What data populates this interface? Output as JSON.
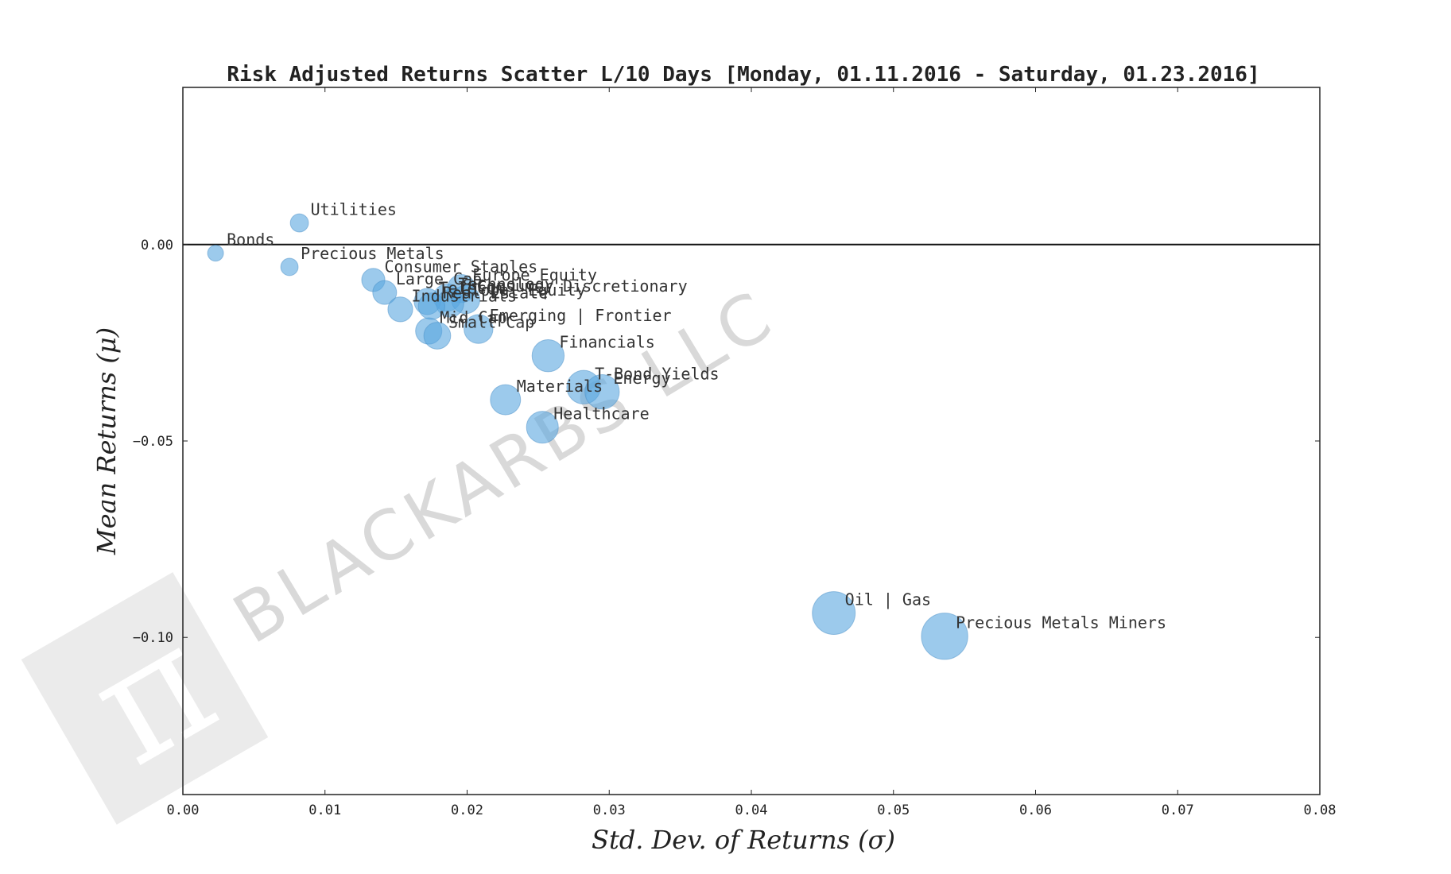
{
  "chart_data": {
    "type": "scatter",
    "title": "Risk Adjusted Returns Scatter L/10 Days [Monday, 01.11.2016 - Saturday, 01.23.2016]",
    "xlabel": "Std.  Dev.  of  Returns     (σ)",
    "ylabel": "Mean  Returns     (μ)",
    "xlim": [
      0.0,
      0.08
    ],
    "ylim": [
      -0.14,
      0.04
    ],
    "xticks": [
      0.0,
      0.01,
      0.02,
      0.03,
      0.04,
      0.05,
      0.06,
      0.07,
      0.08
    ],
    "xtick_labels": [
      "0.00",
      "0.01",
      "0.02",
      "0.03",
      "0.04",
      "0.05",
      "0.06",
      "0.07",
      "0.08"
    ],
    "yticks": [
      0.0,
      -0.05,
      -0.1
    ],
    "ytick_labels": [
      "0.00",
      "−0.05",
      "−0.10"
    ],
    "zero_line": 0.0,
    "color": "#5aa7e0",
    "points": [
      {
        "label": "Bonds",
        "x": 0.0023,
        "y": -0.0022,
        "size": 0.0023
      },
      {
        "label": "Utilities",
        "x": 0.0082,
        "y": 0.0055,
        "size": 0.0082
      },
      {
        "label": "Precious Metals",
        "x": 0.0075,
        "y": -0.0057,
        "size": 0.0075
      },
      {
        "label": "Consumer Staples",
        "x": 0.0134,
        "y": -0.009,
        "size": 0.0134
      },
      {
        "label": "Large Cap",
        "x": 0.0142,
        "y": -0.0122,
        "size": 0.0142
      },
      {
        "label": "Europe Equity",
        "x": 0.0196,
        "y": -0.0112,
        "size": 0.0196
      },
      {
        "label": "Technology",
        "x": 0.0186,
        "y": -0.0135,
        "size": 0.0186
      },
      {
        "label": "Consumer Discretionary",
        "x": 0.0199,
        "y": -0.014,
        "size": 0.0199
      },
      {
        "label": "Telecom",
        "x": 0.0172,
        "y": -0.0145,
        "size": 0.0172
      },
      {
        "label": "Global Equity",
        "x": 0.0188,
        "y": -0.015,
        "size": 0.0188
      },
      {
        "label": "Real Estate",
        "x": 0.0175,
        "y": -0.0157,
        "size": 0.0175
      },
      {
        "label": "Industrials",
        "x": 0.0153,
        "y": -0.0165,
        "size": 0.0153
      },
      {
        "label": "Emerging | Frontier",
        "x": 0.0208,
        "y": -0.0215,
        "size": 0.0208
      },
      {
        "label": "Mid Cap",
        "x": 0.0173,
        "y": -0.022,
        "size": 0.0173
      },
      {
        "label": "Small Cap",
        "x": 0.0179,
        "y": -0.0232,
        "size": 0.0179
      },
      {
        "label": "Financials",
        "x": 0.0257,
        "y": -0.0283,
        "size": 0.0257
      },
      {
        "label": "T-Bond Yields",
        "x": 0.0282,
        "y": -0.0363,
        "size": 0.0282
      },
      {
        "label": "Energy",
        "x": 0.0295,
        "y": -0.0375,
        "size": 0.0295
      },
      {
        "label": "Materials",
        "x": 0.0227,
        "y": -0.0395,
        "size": 0.0227
      },
      {
        "label": "Healthcare",
        "x": 0.0253,
        "y": -0.0465,
        "size": 0.0253
      },
      {
        "label": "Oil | Gas",
        "x": 0.0458,
        "y": -0.0938,
        "size": 0.0458
      },
      {
        "label": "Precious Metals Miners",
        "x": 0.0536,
        "y": -0.0997,
        "size": 0.0536
      }
    ]
  },
  "watermark": {
    "text": "BLACKARBS LLC",
    "symbol": "π"
  }
}
